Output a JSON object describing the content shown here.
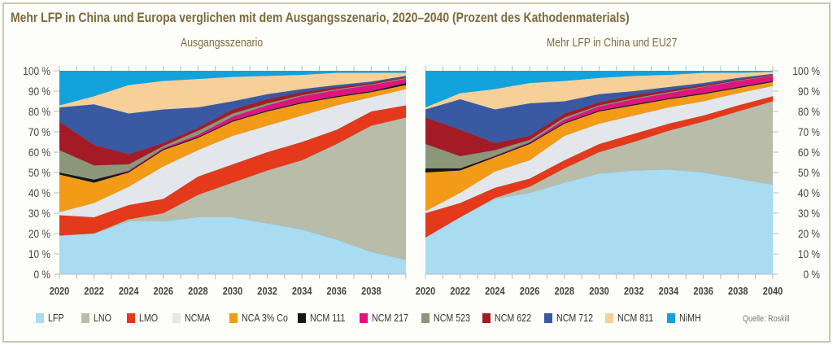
{
  "title": "Mehr LFP in China und Europa verglichen mit dem Ausgangsszenario, 2020–2040 (Prozent des Kathodenmaterials)",
  "source": "Quelle: Roskill",
  "colors": {
    "LFP": "#a9dbf1",
    "LNO": "#b9bca9",
    "LMO": "#e4391b",
    "NCMA": "#e3e7eb",
    "NCA 3% Co": "#f39a16",
    "NCM 111": "#161616",
    "NCM 217": "#e0137f",
    "NCM 523": "#8b9778",
    "NCM 622": "#a51b25",
    "NCM 712": "#3a59a3",
    "NCM 811": "#f7cf98",
    "NiMH": "#12a2dc"
  },
  "legend": [
    "LFP",
    "LNO",
    "LMO",
    "NCMA",
    "NCA 3% Co",
    "NCM 111",
    "NCM 217",
    "NCM 523",
    "NCM 622",
    "NCM 712",
    "NCM 811",
    "NiMH"
  ],
  "chart_data": [
    {
      "type": "area",
      "stacked": true,
      "title": "Ausgangsszenario",
      "x": [
        2020,
        2022,
        2024,
        2026,
        2028,
        2030,
        2032,
        2034,
        2036,
        2038,
        2040
      ],
      "x_tick_labels": [
        "2020",
        "2022",
        "2024",
        "2026",
        "2028",
        "2030",
        "2032",
        "2034",
        "2036",
        "2038"
      ],
      "y_tick_labels": [
        "0 %",
        "10 %",
        "20 %",
        "30 %",
        "40 %",
        "50 %",
        "60 %",
        "70 %",
        "80 %",
        "90 %",
        "100 %"
      ],
      "ylim": [
        0,
        100
      ],
      "y_axis_side": "left",
      "series": [
        {
          "name": "LFP",
          "values": [
            19,
            20,
            26,
            26,
            28,
            28,
            25,
            22,
            17,
            11,
            7
          ]
        },
        {
          "name": "LNO",
          "values": [
            0,
            0,
            1,
            4,
            11,
            17,
            26,
            34,
            47,
            62,
            70
          ]
        },
        {
          "name": "LMO",
          "values": [
            10,
            8,
            7,
            7,
            9,
            9,
            9,
            9,
            7,
            7,
            6
          ]
        },
        {
          "name": "NCMA",
          "values": [
            1.5,
            7,
            9,
            16,
            13,
            14,
            13,
            13,
            12,
            7,
            8
          ]
        },
        {
          "name": "NCA 3% Co",
          "values": [
            18.5,
            10,
            7,
            8,
            6,
            7,
            7,
            6,
            4,
            2.5,
            2
          ]
        },
        {
          "name": "NCM 111",
          "values": [
            1,
            1.5,
            0.5,
            0.5,
            0.5,
            0.5,
            0.5,
            0.5,
            0.5,
            0.5,
            1
          ]
        },
        {
          "name": "NCM 217",
          "values": [
            0,
            0,
            0.5,
            0.5,
            1,
            2,
            2.5,
            3,
            3,
            3,
            2
          ]
        },
        {
          "name": "NCM 523",
          "values": [
            11,
            7,
            3,
            1,
            2,
            1.5,
            1,
            0.5,
            0.5,
            0.3,
            0.5
          ]
        },
        {
          "name": "NCM 622",
          "values": [
            14,
            10,
            5,
            1.5,
            1.5,
            2,
            2,
            1.5,
            1,
            0.7,
            0.5
          ]
        },
        {
          "name": "NCM 712",
          "values": [
            7,
            20,
            20,
            16.5,
            10,
            4,
            2.5,
            1.5,
            1,
            0.7,
            0.5
          ]
        },
        {
          "name": "NCM 811",
          "values": [
            1,
            4,
            14,
            14,
            14,
            12,
            9,
            7,
            6,
            4.3,
            1.5
          ]
        },
        {
          "name": "NiMH",
          "values": [
            17,
            12,
            7,
            5,
            4,
            3,
            2.5,
            2,
            1,
            1,
            1
          ]
        }
      ]
    },
    {
      "type": "area",
      "stacked": true,
      "title": "Mehr LFP in China und EU27",
      "x": [
        2020,
        2022,
        2024,
        2026,
        2028,
        2030,
        2032,
        2034,
        2036,
        2038,
        2040
      ],
      "x_tick_labels": [
        "2020",
        "2022",
        "2024",
        "2026",
        "2028",
        "2030",
        "2032",
        "2034",
        "2036",
        "2038",
        "2040"
      ],
      "y_tick_labels": [
        "0 %",
        "10 %",
        "20 %",
        "30 %",
        "40 %",
        "50 %",
        "60 %",
        "70 %",
        "80 %",
        "90 %",
        "100 %"
      ],
      "ylim": [
        0,
        100
      ],
      "y_axis_side": "right",
      "series": [
        {
          "name": "LFP",
          "values": [
            18,
            28,
            37,
            40,
            45,
            49.5,
            51,
            51.5,
            50,
            47,
            44
          ]
        },
        {
          "name": "LNO",
          "values": [
            0,
            0,
            0.5,
            3,
            7,
            10.5,
            14,
            19,
            25,
            33,
            41
          ]
        },
        {
          "name": "LMO",
          "values": [
            12,
            7,
            5,
            4,
            4,
            4,
            4,
            3.5,
            3,
            3,
            2.5
          ]
        },
        {
          "name": "NCMA",
          "values": [
            1,
            5,
            8,
            9,
            12,
            10,
            9,
            8,
            7,
            6,
            5
          ]
        },
        {
          "name": "NCA 3% Co",
          "values": [
            19,
            11,
            7,
            8,
            6,
            6,
            5,
            4,
            3.5,
            2.5,
            2
          ]
        },
        {
          "name": "NCM 111",
          "values": [
            2,
            1,
            0.5,
            0.5,
            0.5,
            0.5,
            0.5,
            0.5,
            0.5,
            0.5,
            0.5
          ]
        },
        {
          "name": "NCM 217",
          "values": [
            0,
            0,
            0.3,
            0.5,
            1.5,
            2,
            2.5,
            2.5,
            3,
            3,
            2.5
          ]
        },
        {
          "name": "NCM 523",
          "values": [
            12,
            6,
            2.7,
            1,
            1,
            0.5,
            0.5,
            0.5,
            0.3,
            0.3,
            0.2
          ]
        },
        {
          "name": "NCM 622",
          "values": [
            13,
            13,
            3.5,
            2,
            2,
            1.5,
            1.5,
            1,
            0.7,
            0.5,
            0.3
          ]
        },
        {
          "name": "NCM 712",
          "values": [
            4,
            15,
            16.5,
            16,
            6,
            4,
            2,
            1.5,
            1,
            0.7,
            0.5
          ]
        },
        {
          "name": "NCM 811",
          "values": [
            1,
            3,
            10,
            10,
            10,
            8,
            7.5,
            6,
            5,
            2.5,
            1
          ]
        },
        {
          "name": "NiMH",
          "values": [
            18,
            11,
            9,
            6,
            5,
            3.5,
            2.5,
            2,
            1,
            1,
            0.5
          ]
        }
      ]
    }
  ]
}
